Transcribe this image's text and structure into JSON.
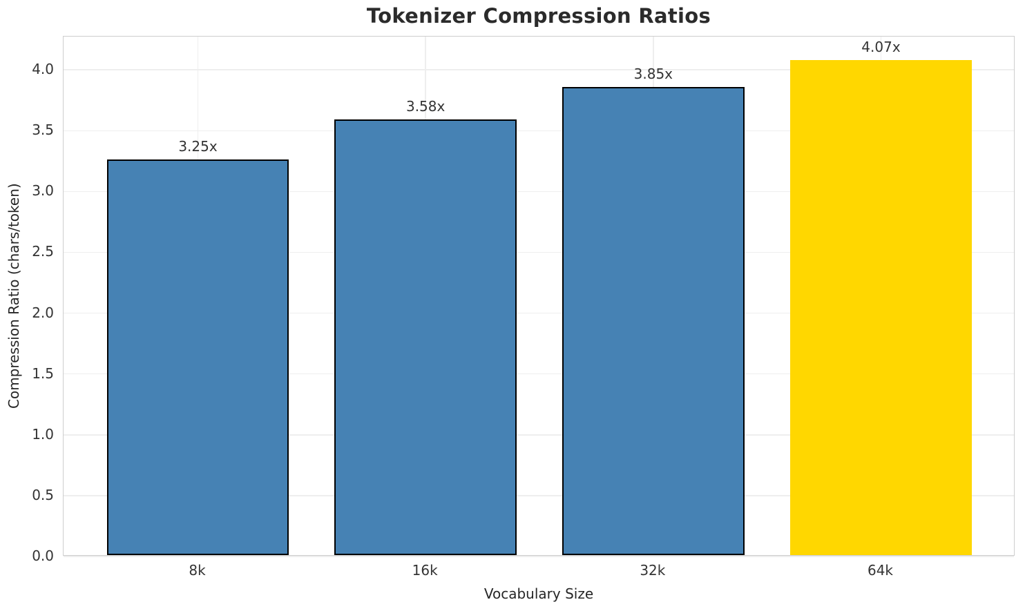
{
  "title": "Tokenizer Compression Ratios",
  "chart_data": {
    "type": "bar",
    "title": "Tokenizer Compression Ratios",
    "categories": [
      "8k",
      "16k",
      "32k",
      "64k"
    ],
    "values": [
      3.25,
      3.58,
      3.85,
      4.07
    ],
    "bar_labels": [
      "3.25x",
      "3.58x",
      "3.85x",
      "4.07x"
    ],
    "xlabel": "Vocabulary Size",
    "ylabel": "Compression Ratio (chars/token)",
    "ylim": [
      0,
      4.27
    ],
    "yticks": [
      0.0,
      0.5,
      1.0,
      1.5,
      2.0,
      2.5,
      3.0,
      3.5,
      4.0
    ],
    "ytick_labels": [
      "0.0",
      "0.5",
      "1.0",
      "1.5",
      "2.0",
      "2.5",
      "3.0",
      "3.5",
      "4.0"
    ],
    "grid": true,
    "legend_position": "none",
    "highlight_index": 3,
    "bar_colors": [
      "#4682B4",
      "#4682B4",
      "#4682B4",
      "#FFD700"
    ],
    "bar_edge_colors": [
      "#000000",
      "#000000",
      "#000000",
      "none"
    ]
  },
  "colors": {
    "bar_default": "#4682B4",
    "bar_highlight": "#FFD700",
    "bar_edge": "#000000",
    "grid": "#eeeeee",
    "spine": "#cdcdcd",
    "text": "#262626",
    "background": "#ffffff"
  }
}
